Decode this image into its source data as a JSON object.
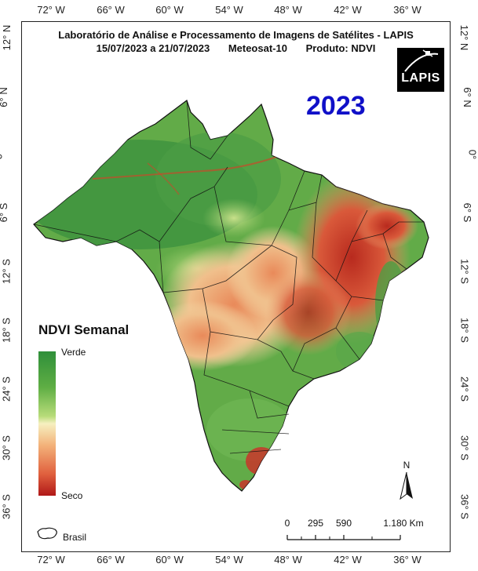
{
  "header": {
    "line1": "Laboratório de Análise e Processamento de Imagens de Satélites - LAPIS",
    "period": "15/07/2023  a  21/07/2023",
    "satellite": "Meteosat-10",
    "product": "Produto: NDVI"
  },
  "year_label": "2023",
  "logo_text": "LAPIS",
  "longitude_ticks": [
    "72° W",
    "66° W",
    "60° W",
    "54° W",
    "48° W",
    "42° W",
    "36° W"
  ],
  "latitude_ticks": [
    "12° N",
    "6° N",
    "0°",
    "6° S",
    "12° S",
    "18° S",
    "24° S",
    "30° S",
    "36° S"
  ],
  "legend": {
    "title": "NDVI Semanal",
    "top_label": "Verde",
    "bottom_label": "Seco",
    "brasil_label": "Brasil"
  },
  "scale_bar": {
    "numbers": [
      "0",
      "295",
      "590",
      "1.180 Km"
    ]
  },
  "north_label": "N",
  "colors": {
    "green": "#2f8f3a",
    "light": "#f6f0c0",
    "dry": "#b01818",
    "year": "#1010c8"
  }
}
